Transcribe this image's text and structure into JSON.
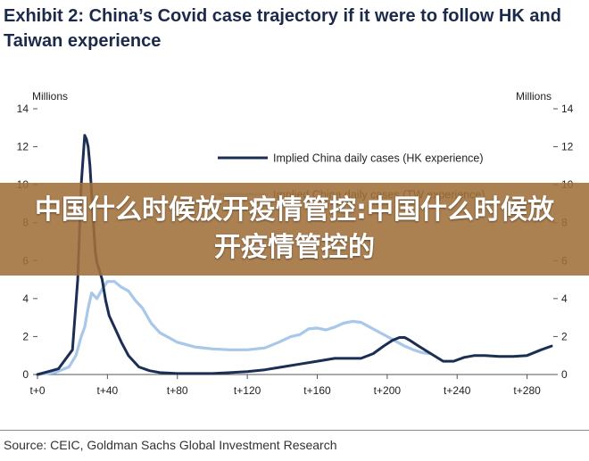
{
  "header": {
    "title": "Exhibit 2: China’s Covid case trajectory if it were to follow HK and Taiwan experience"
  },
  "banner": {
    "text": "中国什么时候放开疫情管控:中国什么时候放开疫情管控的"
  },
  "footer": {
    "source": "Source: CEIC, Goldman Sachs Global Investment Research"
  },
  "colors": {
    "hk_series": "#1b2f55",
    "tw_series": "#a9c7e8",
    "banner": "#a0703a"
  },
  "chart_data": {
    "type": "line",
    "ylabel_left": "Millions",
    "ylabel_right": "Millions",
    "xlim": [
      0,
      295
    ],
    "ylim": [
      0,
      14
    ],
    "y_ticks": [
      0,
      2,
      4,
      6,
      8,
      10,
      12,
      14
    ],
    "y_tick_labels": [
      "0",
      "2",
      "4",
      "6",
      "8",
      "10",
      "12",
      "14"
    ],
    "x_ticks": [
      0,
      40,
      80,
      120,
      160,
      200,
      240,
      280
    ],
    "x_tick_labels": [
      "t+0",
      "t+40",
      "t+80",
      "t+120",
      "t+160",
      "t+200",
      "t+240",
      "t+280"
    ],
    "legend_position": "top-right",
    "series": [
      {
        "name": "Implied China daily cases (HK experience)",
        "color": "#1b2f55",
        "x": [
          0,
          6,
          12,
          16,
          20,
          23,
          25,
          27,
          28,
          29,
          30,
          31,
          32,
          33,
          34,
          35,
          37,
          39,
          41,
          44,
          48,
          52,
          58,
          64,
          70,
          80,
          90,
          100,
          110,
          120,
          130,
          140,
          150,
          160,
          170,
          178,
          185,
          192,
          198,
          203,
          207,
          210,
          213,
          218,
          225,
          232,
          238,
          244,
          250,
          256,
          264,
          272,
          280,
          288,
          294
        ],
        "y": [
          0,
          0.15,
          0.3,
          0.8,
          1.3,
          5.0,
          10.0,
          12.6,
          12.4,
          12.0,
          11.0,
          9.5,
          8.0,
          6.5,
          5.9,
          5.6,
          5.0,
          3.9,
          3.1,
          2.5,
          1.7,
          1.0,
          0.4,
          0.2,
          0.1,
          0.05,
          0.05,
          0.05,
          0.1,
          0.15,
          0.25,
          0.4,
          0.55,
          0.7,
          0.85,
          0.85,
          0.85,
          1.1,
          1.5,
          1.8,
          1.95,
          1.95,
          1.8,
          1.5,
          1.1,
          0.7,
          0.7,
          0.9,
          1.0,
          1.0,
          0.95,
          0.95,
          1.0,
          1.3,
          1.5
        ]
      },
      {
        "name": "Implied China daily cases (TW experience)",
        "color": "#a9c7e8",
        "x": [
          0,
          10,
          18,
          22,
          25,
          27,
          29,
          31,
          34,
          37,
          40,
          44,
          48,
          52,
          56,
          60,
          65,
          70,
          80,
          90,
          100,
          110,
          120,
          130,
          138,
          145,
          150,
          155,
          160,
          165,
          170,
          175,
          180,
          185,
          190,
          195,
          200,
          205,
          210,
          215,
          220,
          224
        ],
        "y": [
          0,
          0.1,
          0.4,
          1.0,
          2.0,
          2.5,
          3.5,
          4.3,
          4.0,
          4.5,
          4.9,
          4.9,
          4.6,
          4.4,
          3.9,
          3.5,
          2.7,
          2.2,
          1.7,
          1.45,
          1.35,
          1.3,
          1.3,
          1.4,
          1.7,
          2.0,
          2.1,
          2.4,
          2.45,
          2.35,
          2.5,
          2.7,
          2.8,
          2.75,
          2.5,
          2.25,
          2.0,
          1.75,
          1.5,
          1.3,
          1.15,
          1.1
        ]
      }
    ]
  }
}
